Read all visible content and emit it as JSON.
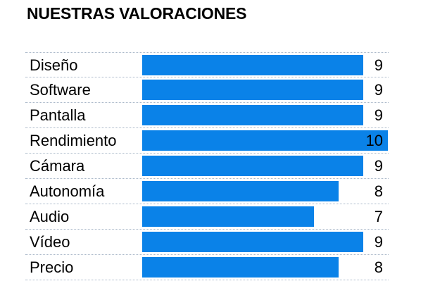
{
  "title": "NUESTRAS VALORACIONES",
  "colors": {
    "bar": "#0a82e8",
    "text": "#000000",
    "gridline": "#a9b7c8"
  },
  "chart_data": {
    "type": "bar",
    "orientation": "horizontal",
    "title": "NUESTRAS VALORACIONES",
    "categories": [
      "Diseño",
      "Software",
      "Pantalla",
      "Rendimiento",
      "Cámara",
      "Autonomía",
      "Audio",
      "Vídeo",
      "Precio"
    ],
    "values": [
      9,
      9,
      9,
      10,
      9,
      8,
      7,
      9,
      8
    ],
    "value_labels": [
      "9",
      "9",
      "9",
      "10",
      "9",
      "8",
      "7",
      "9",
      "8"
    ],
    "xlim": [
      0,
      10
    ],
    "grid": "dotted horizontal separators"
  }
}
